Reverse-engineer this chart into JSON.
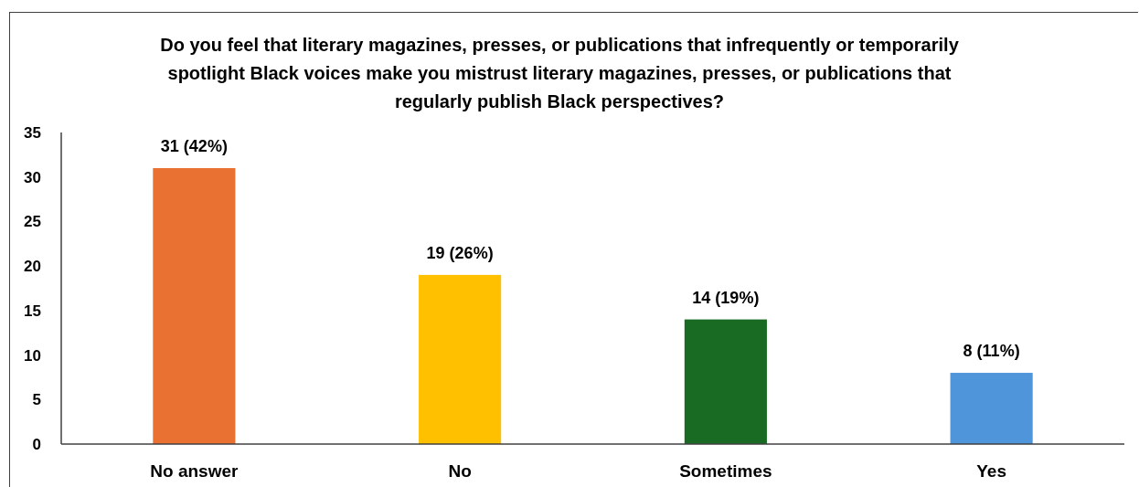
{
  "chart_data": {
    "type": "bar",
    "title": "Do you feel that literary magazines, presses, or publications that infrequently or temporarily spotlight Black voices make you mistrust literary magazines, presses, or publications that regularly publish Black perspectives?",
    "categories": [
      "No answer",
      "No",
      "Sometimes",
      "Yes"
    ],
    "values": [
      31,
      19,
      14,
      8
    ],
    "colors": [
      "#e97132",
      "#ffc000",
      "#196b24",
      "#4e95d9"
    ],
    "value_labels": [
      "31 (42%)",
      "19 (26%)",
      "14 (19%)",
      "8 (11%)"
    ],
    "ylim": [
      0,
      35
    ],
    "yticks": [
      0,
      5,
      10,
      15,
      20,
      25,
      30,
      35
    ]
  }
}
